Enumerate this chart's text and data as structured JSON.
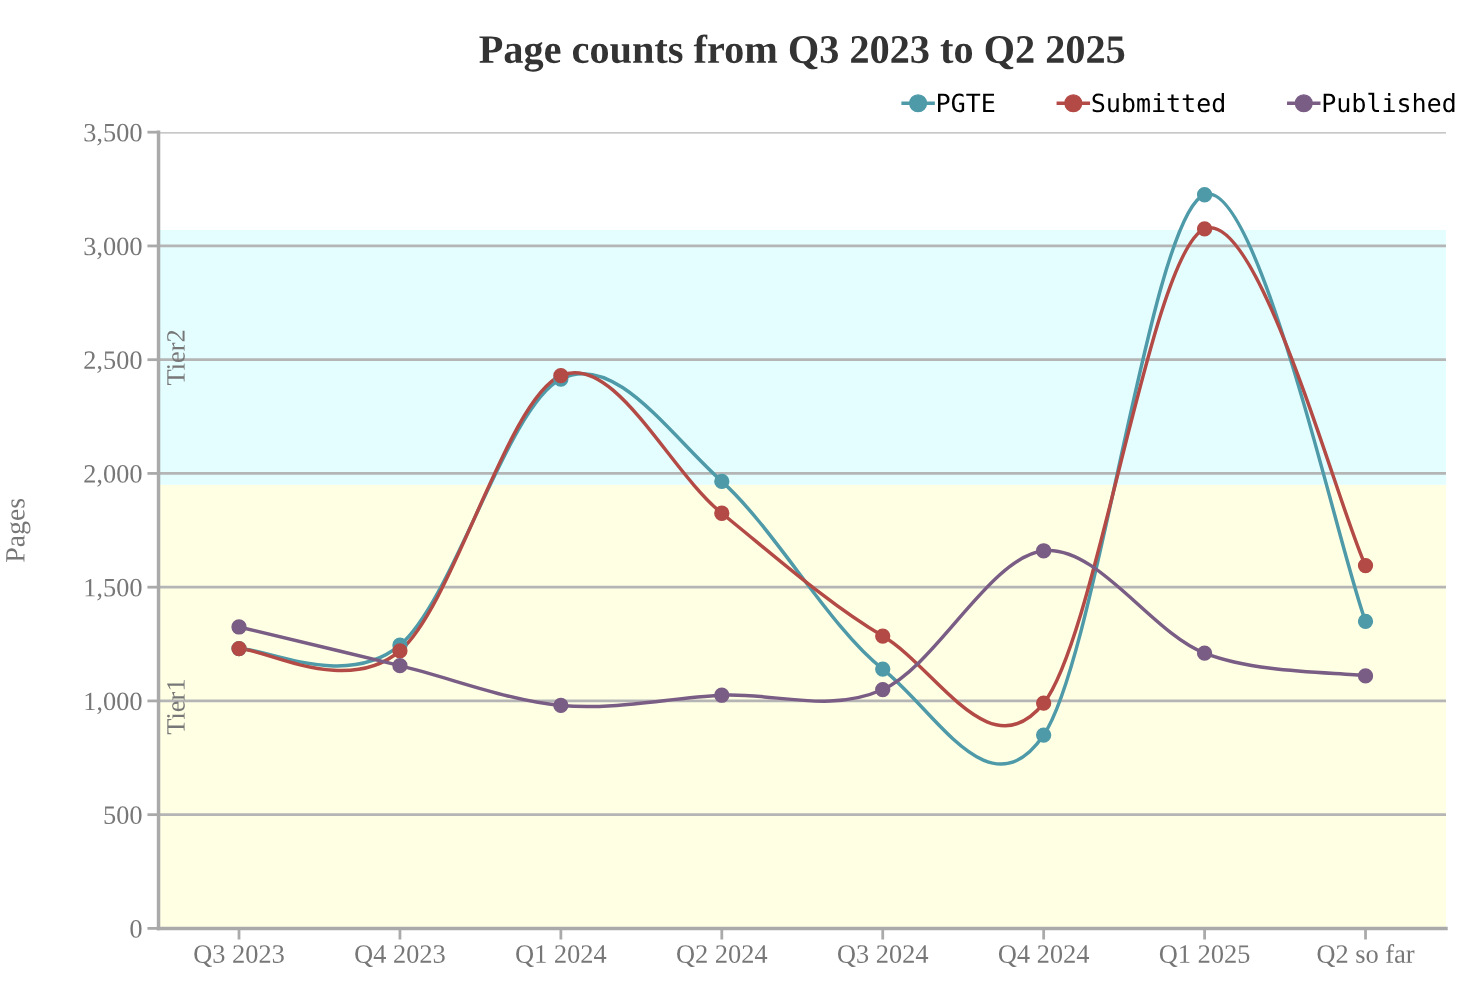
{
  "chart_data": {
    "type": "line",
    "title": "Page counts from Q3 2023 to Q2 2025",
    "ylabel": "Pages",
    "categories": [
      "Q3 2023",
      "Q4 2023",
      "Q1 2024",
      "Q2 2024",
      "Q3 2024",
      "Q4 2024",
      "Q1 2025",
      "Q2 so far"
    ],
    "series": [
      {
        "name": "PGTE",
        "color": "#4e9aa8",
        "values": [
          1230,
          1245,
          2415,
          1965,
          1140,
          850,
          3225,
          1350
        ]
      },
      {
        "name": "Submitted",
        "color": "#b34a45",
        "values": [
          1230,
          1220,
          2430,
          1825,
          1285,
          990,
          3075,
          1595
        ]
      },
      {
        "name": "Published",
        "color": "#7a5d85",
        "values": [
          1325,
          1155,
          980,
          1025,
          1050,
          1660,
          1210,
          1110
        ]
      }
    ],
    "ylim": [
      0,
      3500
    ],
    "yticks": [
      {
        "value": 0,
        "label": "0"
      },
      {
        "value": 500,
        "label": "500"
      },
      {
        "value": 1000,
        "label": "1,000"
      },
      {
        "value": 1500,
        "label": "1,500"
      },
      {
        "value": 2000,
        "label": "2,000"
      },
      {
        "value": 2500,
        "label": "2,500"
      },
      {
        "value": 3000,
        "label": "3,000"
      },
      {
        "value": 3500,
        "label": "3,500"
      }
    ],
    "bands": [
      {
        "axis": "y",
        "from": 0,
        "to": 1950,
        "label": "Tier1",
        "color": "#ffffe4"
      },
      {
        "axis": "y",
        "from": 1950,
        "to": 3070,
        "label": "Tier2",
        "color": "#e4feff"
      }
    ],
    "grid": "y",
    "legend": "top right",
    "marker": "circle",
    "line_style": "solid"
  }
}
